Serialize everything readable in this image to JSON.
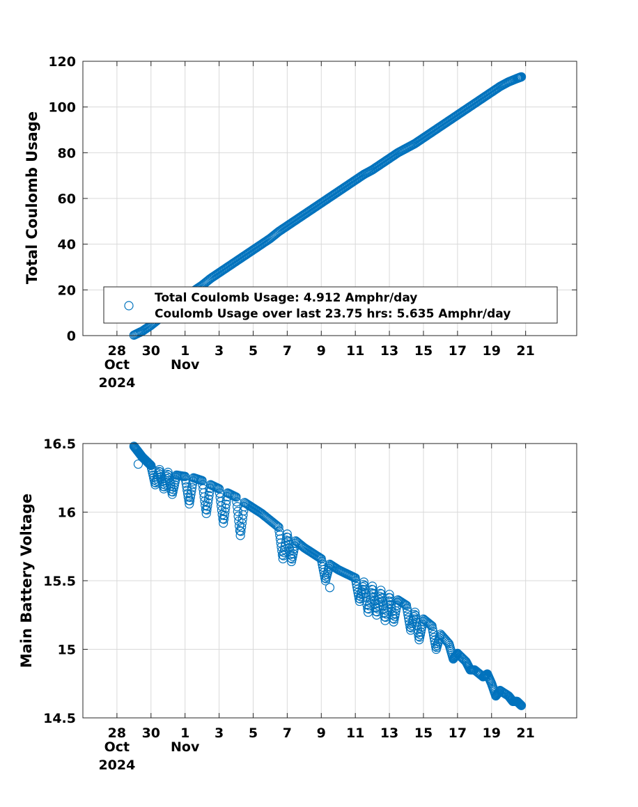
{
  "chart_data": [
    {
      "type": "scatter",
      "ylabel": "Total Coulomb Usage",
      "ylim": [
        0,
        120
      ],
      "yticks": [
        "0",
        "20",
        "40",
        "60",
        "80",
        "100",
        "120"
      ],
      "xlim": [
        "2024-10-26",
        "2024-11-24"
      ],
      "xticks": [
        {
          "date": "2024-10-28",
          "label": "28",
          "sub1": "Oct",
          "sub2": "2024"
        },
        {
          "date": "2024-10-30",
          "label": "30",
          "sub1": "",
          "sub2": ""
        },
        {
          "date": "2024-11-01",
          "label": "1",
          "sub1": "Nov",
          "sub2": ""
        },
        {
          "date": "2024-11-03",
          "label": "3",
          "sub1": "",
          "sub2": ""
        },
        {
          "date": "2024-11-05",
          "label": "5",
          "sub1": "",
          "sub2": ""
        },
        {
          "date": "2024-11-07",
          "label": "7",
          "sub1": "",
          "sub2": ""
        },
        {
          "date": "2024-11-09",
          "label": "9",
          "sub1": "",
          "sub2": ""
        },
        {
          "date": "2024-11-11",
          "label": "11",
          "sub1": "",
          "sub2": ""
        },
        {
          "date": "2024-11-13",
          "label": "13",
          "sub1": "",
          "sub2": ""
        },
        {
          "date": "2024-11-15",
          "label": "15",
          "sub1": "",
          "sub2": ""
        },
        {
          "date": "2024-11-17",
          "label": "17",
          "sub1": "",
          "sub2": ""
        },
        {
          "date": "2024-11-19",
          "label": "19",
          "sub1": "",
          "sub2": ""
        },
        {
          "date": "2024-11-21",
          "label": "21",
          "sub1": "",
          "sub2": ""
        }
      ],
      "grid": true,
      "legend_position": "bottom-right",
      "legend": [
        "Total Coulomb Usage:  4.912 Amphr/day",
        "Coulomb Usage over last 23.75 hrs:  5.635 Amphr/day"
      ],
      "color": "#0072BD",
      "marker": "open-circle",
      "series": [
        {
          "x": [
            "2024-10-29 00:00",
            "2024-10-29 12:00",
            "2024-10-30 00:00",
            "2024-10-30 12:00",
            "2024-10-31 00:00",
            "2024-10-31 12:00",
            "2024-11-01 00:00",
            "2024-11-01 12:00",
            "2024-11-02 00:00",
            "2024-11-02 12:00",
            "2024-11-03 00:00",
            "2024-11-03 12:00",
            "2024-11-04 00:00",
            "2024-11-04 12:00",
            "2024-11-05 00:00",
            "2024-11-05 12:00",
            "2024-11-06 00:00",
            "2024-11-06 12:00",
            "2024-11-07 00:00",
            "2024-11-07 12:00",
            "2024-11-08 00:00",
            "2024-11-08 12:00",
            "2024-11-09 00:00",
            "2024-11-09 12:00",
            "2024-11-10 00:00",
            "2024-11-10 12:00",
            "2024-11-11 00:00",
            "2024-11-11 12:00",
            "2024-11-12 00:00",
            "2024-11-12 12:00",
            "2024-11-13 00:00",
            "2024-11-13 12:00",
            "2024-11-14 00:00",
            "2024-11-14 12:00",
            "2024-11-15 00:00",
            "2024-11-15 12:00",
            "2024-11-16 00:00",
            "2024-11-16 12:00",
            "2024-11-17 00:00",
            "2024-11-17 12:00",
            "2024-11-18 00:00",
            "2024-11-18 12:00",
            "2024-11-19 00:00",
            "2024-11-19 12:00",
            "2024-11-20 00:00",
            "2024-11-20 12:00",
            "2024-11-20 18:00"
          ],
          "y": [
            0.2,
            2.0,
            4.5,
            7.5,
            10.5,
            13.5,
            16.5,
            19.5,
            22.0,
            25.0,
            27.5,
            30.0,
            32.5,
            35.0,
            37.5,
            40.0,
            42.5,
            45.5,
            48.0,
            50.5,
            53.0,
            55.5,
            58.0,
            60.5,
            63.0,
            65.5,
            68.0,
            70.5,
            72.5,
            75.0,
            77.5,
            80.0,
            82.0,
            84.0,
            86.5,
            89.0,
            91.5,
            94.0,
            96.5,
            99.0,
            101.5,
            104.0,
            106.5,
            109.0,
            111.0,
            112.5,
            113.2
          ]
        }
      ]
    },
    {
      "type": "scatter",
      "ylabel": "Main Battery Voltage",
      "ylim": [
        14.5,
        16.5
      ],
      "yticks": [
        "14.5",
        "15",
        "15.5",
        "16",
        "16.5"
      ],
      "xlim": [
        "2024-10-26",
        "2024-11-24"
      ],
      "xticks": [
        {
          "date": "2024-10-28",
          "label": "28",
          "sub1": "Oct",
          "sub2": "2024"
        },
        {
          "date": "2024-10-30",
          "label": "30",
          "sub1": "",
          "sub2": ""
        },
        {
          "date": "2024-11-01",
          "label": "1",
          "sub1": "Nov",
          "sub2": ""
        },
        {
          "date": "2024-11-03",
          "label": "3",
          "sub1": "",
          "sub2": ""
        },
        {
          "date": "2024-11-05",
          "label": "5",
          "sub1": "",
          "sub2": ""
        },
        {
          "date": "2024-11-07",
          "label": "7",
          "sub1": "",
          "sub2": ""
        },
        {
          "date": "2024-11-09",
          "label": "9",
          "sub1": "",
          "sub2": ""
        },
        {
          "date": "2024-11-11",
          "label": "11",
          "sub1": "",
          "sub2": ""
        },
        {
          "date": "2024-11-13",
          "label": "13",
          "sub1": "",
          "sub2": ""
        },
        {
          "date": "2024-11-15",
          "label": "15",
          "sub1": "",
          "sub2": ""
        },
        {
          "date": "2024-11-17",
          "label": "17",
          "sub1": "",
          "sub2": ""
        },
        {
          "date": "2024-11-19",
          "label": "19",
          "sub1": "",
          "sub2": ""
        },
        {
          "date": "2024-11-21",
          "label": "21",
          "sub1": "",
          "sub2": ""
        }
      ],
      "grid": true,
      "color": "#0072BD",
      "marker": "open-circle",
      "series": [
        {
          "x": [
            "2024-10-29 00:00",
            "2024-10-29 06:00",
            "2024-10-29 12:00",
            "2024-10-29 18:00",
            "2024-10-30 00:00",
            "2024-10-30 12:00",
            "2024-10-31 00:00",
            "2024-10-31 12:00",
            "2024-11-01 00:00",
            "2024-11-01 12:00",
            "2024-11-02 00:00",
            "2024-11-02 12:00",
            "2024-11-03 00:00",
            "2024-11-03 12:00",
            "2024-11-04 00:00",
            "2024-11-04 12:00",
            "2024-11-05 00:00",
            "2024-11-05 12:00",
            "2024-11-06 00:00",
            "2024-11-06 12:00",
            "2024-11-07 00:00",
            "2024-11-07 12:00",
            "2024-11-08 00:00",
            "2024-11-08 12:00",
            "2024-11-09 00:00",
            "2024-11-09 12:00",
            "2024-11-10 00:00",
            "2024-11-10 12:00",
            "2024-11-11 00:00",
            "2024-11-11 12:00",
            "2024-11-12 00:00",
            "2024-11-12 12:00",
            "2024-11-13 00:00",
            "2024-11-13 12:00",
            "2024-11-14 00:00",
            "2024-11-14 12:00",
            "2024-11-15 00:00",
            "2024-11-15 12:00",
            "2024-11-16 00:00",
            "2024-11-16 12:00",
            "2024-11-17 00:00",
            "2024-11-17 12:00",
            "2024-11-18 00:00",
            "2024-11-18 12:00",
            "2024-11-19 00:00",
            "2024-11-19 12:00",
            "2024-11-20 00:00",
            "2024-11-20 12:00",
            "2024-11-20 18:00",
            "2024-10-29 06:00",
            "2024-10-30 06:00",
            "2024-10-30 18:00",
            "2024-10-31 06:00",
            "2024-11-01 06:00",
            "2024-11-02 06:00",
            "2024-11-03 06:00",
            "2024-11-04 06:00",
            "2024-11-06 18:00",
            "2024-11-07 06:00",
            "2024-11-09 06:00",
            "2024-11-09 12:00",
            "2024-11-11 06:00",
            "2024-11-11 18:00",
            "2024-11-12 06:00",
            "2024-11-12 18:00",
            "2024-11-13 06:00",
            "2024-11-14 06:00",
            "2024-11-14 18:00",
            "2024-11-15 18:00",
            "2024-11-16 18:00",
            "2024-11-17 18:00",
            "2024-11-18 18:00",
            "2024-11-19 06:00",
            "2024-11-20 06:00"
          ],
          "y": [
            16.48,
            16.44,
            16.4,
            16.37,
            16.34,
            16.31,
            16.29,
            16.27,
            16.26,
            16.25,
            16.23,
            16.2,
            16.17,
            16.14,
            16.11,
            16.07,
            16.03,
            15.99,
            15.94,
            15.89,
            15.84,
            15.79,
            15.74,
            15.7,
            15.66,
            15.62,
            15.58,
            15.55,
            15.52,
            15.49,
            15.46,
            15.43,
            15.4,
            15.36,
            15.32,
            15.27,
            15.22,
            15.17,
            15.11,
            15.04,
            14.97,
            14.91,
            14.85,
            14.8,
            14.75,
            14.7,
            14.66,
            14.62,
            14.59,
            16.35,
            16.2,
            16.17,
            16.13,
            16.06,
            15.99,
            15.92,
            15.83,
            15.66,
            15.64,
            15.5,
            15.45,
            15.35,
            15.27,
            15.25,
            15.21,
            15.2,
            15.14,
            15.07,
            15.0,
            14.93,
            14.85,
            14.82,
            14.66,
            14.62
          ]
        }
      ]
    }
  ]
}
